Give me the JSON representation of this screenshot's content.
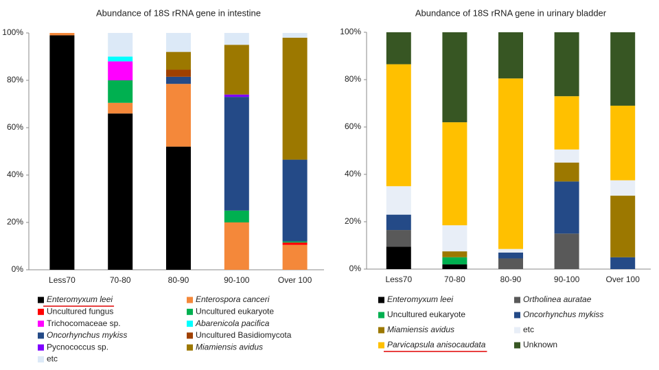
{
  "chart_data": [
    {
      "type": "stacked_bar",
      "title": "Abundance of 18S rRNA gene in intestine",
      "categories": [
        "Less70",
        "70-80",
        "80-90",
        "90-100",
        "Over 100"
      ],
      "ylim": [
        0,
        100
      ],
      "yticks": [
        {
          "value": 0,
          "label": "0%"
        },
        {
          "value": 20,
          "label": "20%"
        },
        {
          "value": 40,
          "label": "40%"
        },
        {
          "value": 60,
          "label": "60%"
        },
        {
          "value": 80,
          "label": "80%"
        },
        {
          "value": 100,
          "label": "100%"
        }
      ],
      "series": [
        {
          "name": "Enteromyxum leei",
          "color": "#000000",
          "italic": true,
          "underline": true,
          "values": [
            99,
            66,
            52,
            0,
            0
          ]
        },
        {
          "name": "Enterospora canceri",
          "color": "#f4883a",
          "italic": true,
          "values": [
            1,
            4.5,
            26.5,
            20,
            10.5
          ]
        },
        {
          "name": "Uncultured fungus",
          "color": "#ff0000",
          "values": [
            0,
            0,
            0,
            0,
            1
          ]
        },
        {
          "name": "Uncultured eukaryote",
          "color": "#00b050",
          "values": [
            0,
            9.5,
            0,
            5,
            0.5
          ]
        },
        {
          "name": "Trichocomaceae sp.",
          "color": "#ff00ff",
          "values": [
            0,
            8,
            0,
            0,
            0
          ]
        },
        {
          "name": "Abarenicola pacifica",
          "color": "#00ffff",
          "italic": true,
          "values": [
            0,
            2,
            0,
            0,
            0
          ]
        },
        {
          "name": "Oncorhynchus mykiss",
          "color": "#244a87",
          "italic": true,
          "values": [
            0,
            0,
            3,
            48,
            34.5
          ]
        },
        {
          "name": "Uncultured Basidiomycota",
          "color": "#a04000",
          "values": [
            0,
            0,
            3,
            0,
            0
          ]
        },
        {
          "name": "Pycnococcus sp.",
          "color": "#7f00ff",
          "values": [
            0,
            0,
            0,
            1,
            0
          ]
        },
        {
          "name": "Miamiensis avidus",
          "color": "#9c7800",
          "italic": true,
          "values": [
            0,
            0,
            7.5,
            21,
            51.5
          ]
        },
        {
          "name": "etc",
          "color": "#dce9f7",
          "values": [
            0,
            10,
            8,
            5,
            2
          ]
        }
      ]
    },
    {
      "type": "stacked_bar",
      "title": "Abundance of 18S rRNA gene in urinary bladder",
      "categories": [
        "Less70",
        "70-80",
        "80-90",
        "90-100",
        "Over 100"
      ],
      "ylim": [
        0,
        100
      ],
      "yticks": [
        {
          "value": 0,
          "label": "0%"
        },
        {
          "value": 20,
          "label": "20%"
        },
        {
          "value": 40,
          "label": "40%"
        },
        {
          "value": 60,
          "label": "60%"
        },
        {
          "value": 80,
          "label": "80%"
        },
        {
          "value": 100,
          "label": "100%"
        }
      ],
      "series": [
        {
          "name": "Enteromyxum leei",
          "color": "#000000",
          "italic": true,
          "values": [
            9.5,
            2,
            0,
            0,
            0
          ]
        },
        {
          "name": "Ortholinea auratae",
          "color": "#595959",
          "italic": true,
          "values": [
            7,
            0,
            4.5,
            15,
            0
          ]
        },
        {
          "name": "Uncultured eukaryote",
          "color": "#00b050",
          "values": [
            0,
            3,
            0,
            0,
            0
          ]
        },
        {
          "name": "Oncorhynchus mykiss",
          "color": "#244a87",
          "italic": true,
          "values": [
            6.5,
            0,
            2.5,
            22,
            5
          ]
        },
        {
          "name": "Miamiensis avidus",
          "color": "#9c7800",
          "italic": true,
          "values": [
            0,
            2.5,
            0,
            8,
            26
          ]
        },
        {
          "name": "etc",
          "color": "#e8eef7",
          "values": [
            12,
            11,
            1.5,
            5.5,
            6.5
          ]
        },
        {
          "name": "Parvicapsula anisocaudata",
          "color": "#ffc000",
          "italic": true,
          "underline": true,
          "values": [
            51.5,
            43.5,
            72,
            22.5,
            31.5
          ]
        },
        {
          "name": "Unknown",
          "color": "#375623",
          "values": [
            13.5,
            38,
            19.5,
            27,
            31
          ]
        }
      ]
    }
  ]
}
